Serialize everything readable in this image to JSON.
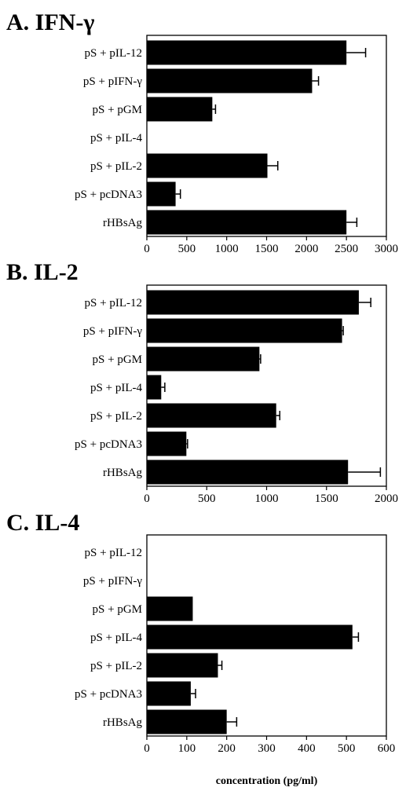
{
  "chart_data": [
    {
      "type": "bar",
      "orientation": "horizontal",
      "title": "A. IFN-γ",
      "categories": [
        "pS + pIL-12",
        "pS + pIFN-γ",
        "pS + pGM",
        "pS + pIL-4",
        "pS + pIL-2",
        "pS + pcDNA3",
        "rHBsAg"
      ],
      "values": [
        2500,
        2070,
        820,
        0,
        1510,
        360,
        2500
      ],
      "errors": [
        240,
        80,
        40,
        0,
        130,
        60,
        130
      ],
      "xlim": [
        0,
        3000
      ],
      "xticks": [
        "0",
        "500",
        "1000",
        "1500",
        "2000",
        "2500",
        "3000"
      ],
      "xlabel": ""
    },
    {
      "type": "bar",
      "orientation": "horizontal",
      "title": "B. IL-2",
      "categories": [
        "pS + pIL-12",
        "pS + pIFN-γ",
        "pS + pGM",
        "pS + pIL-4",
        "pS + pIL-2",
        "pS + pcDNA3",
        "rHBsAg"
      ],
      "values": [
        1770,
        1630,
        940,
        120,
        1080,
        330,
        1680
      ],
      "errors": [
        100,
        10,
        10,
        30,
        30,
        10,
        270
      ],
      "xlim": [
        0,
        2000
      ],
      "xticks": [
        "0",
        "500",
        "1000",
        "1500",
        "2000"
      ],
      "xlabel": ""
    },
    {
      "type": "bar",
      "orientation": "horizontal",
      "title": "C. IL-4",
      "categories": [
        "pS + pIL-12",
        "pS + pIFN-γ",
        "pS + pGM",
        "pS + pIL-4",
        "pS + pIL-2",
        "pS + pcDNA3",
        "rHBsAg"
      ],
      "values": [
        0,
        0,
        115,
        515,
        178,
        110,
        200
      ],
      "errors": [
        0,
        0,
        0,
        15,
        10,
        12,
        25
      ],
      "xlim": [
        0,
        600
      ],
      "xticks": [
        "0",
        "100",
        "200",
        "300",
        "400",
        "500",
        "600"
      ],
      "xlabel": "concentration (pg/ml)"
    }
  ]
}
